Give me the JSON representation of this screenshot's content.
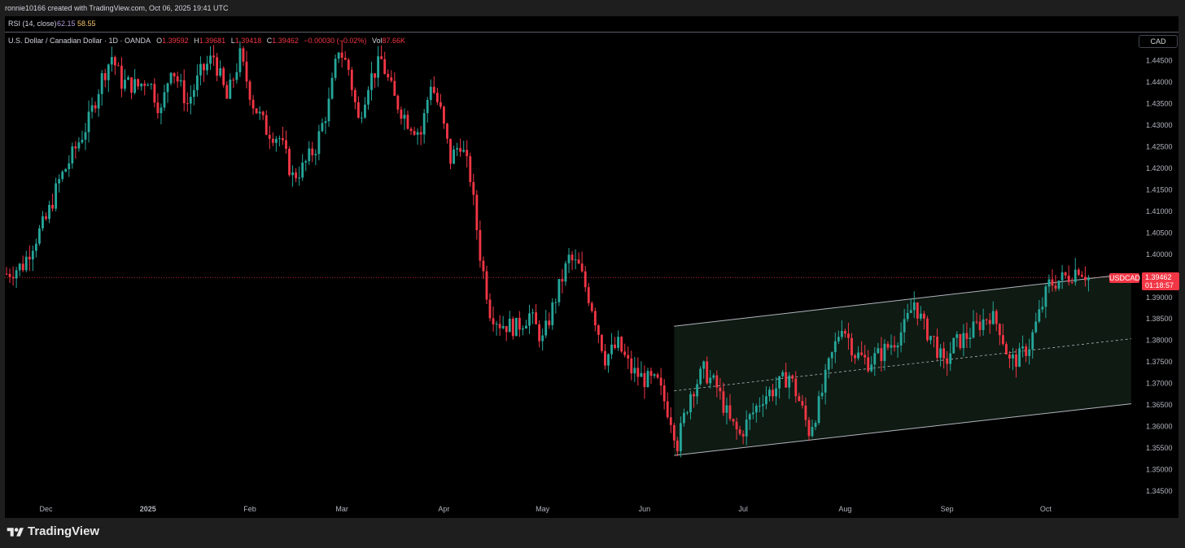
{
  "header": {
    "credit": "ronnie10166 created with TradingView.com, Oct 06, 2025 19:41 UTC"
  },
  "rsi": {
    "label": "RSI (14, close)",
    "value1": "62.15",
    "value2": "58.55",
    "value1_color": "#b39ddb",
    "value2_color": "#f7c76e"
  },
  "legend": {
    "symbol": "U.S. Dollar / Canadian Dollar · 1D · OANDA",
    "o_label": "O",
    "o_value": "1.39592",
    "h_label": "H",
    "h_value": "1.39681",
    "l_label": "L",
    "l_value": "1.39418",
    "c_label": "C",
    "c_value": "1.39462",
    "change": "−0.00030 (−0.02%)",
    "vol_label": "Vol",
    "vol_value": "87.66K"
  },
  "currency_box": "CAD",
  "price_tag": {
    "symbol": "USDCAD",
    "price": "1.39462",
    "countdown": "01:18:57",
    "color": "#f23645"
  },
  "footer": {
    "brand": "TradingView"
  },
  "colors": {
    "up": "#26a69a",
    "down": "#f23645",
    "background": "#000000",
    "axis_text": "#b2b5be"
  },
  "chart_data": {
    "type": "candlestick",
    "title": "",
    "y_axis": {
      "ticks": [
        "1.44500",
        "1.44000",
        "1.43500",
        "1.43000",
        "1.42500",
        "1.42000",
        "1.41500",
        "1.41000",
        "1.40500",
        "1.40000",
        "1.39000",
        "1.38500",
        "1.38000",
        "1.37500",
        "1.37000",
        "1.36500",
        "1.36000",
        "1.35500",
        "1.35000",
        "1.34500"
      ],
      "range": [
        1.342,
        1.4515
      ],
      "side": "right"
    },
    "x_axis": {
      "labels": [
        {
          "text": "Dec",
          "day": 12
        },
        {
          "text": "2025",
          "day": 43,
          "bold": true
        },
        {
          "text": "Feb",
          "day": 74
        },
        {
          "text": "Mar",
          "day": 102
        },
        {
          "text": "Apr",
          "day": 133
        },
        {
          "text": "May",
          "day": 163
        },
        {
          "text": "Jun",
          "day": 194
        },
        {
          "text": "Jul",
          "day": 224
        },
        {
          "text": "Aug",
          "day": 255
        },
        {
          "text": "Sep",
          "day": 286
        },
        {
          "text": "Oct",
          "day": 316
        }
      ],
      "range_days": [
        -0.5,
        343
      ]
    },
    "reference_line": {
      "price": 1.39462,
      "style": "dotted",
      "color": "#f23645"
    },
    "channel": {
      "start_day": 203,
      "end_day": 342,
      "upper": [
        1.3833,
        1.3955
      ],
      "mid": [
        1.3683,
        1.3804
      ],
      "lower": [
        1.3533,
        1.3653
      ],
      "fill": "#0e1a12",
      "line_color": "#b2b5be"
    },
    "anchors": [
      [
        0,
        1.3955
      ],
      [
        5,
        1.3975
      ],
      [
        8,
        1.4025
      ],
      [
        12,
        1.408
      ],
      [
        16,
        1.417
      ],
      [
        20,
        1.423
      ],
      [
        25,
        1.431
      ],
      [
        29,
        1.441
      ],
      [
        32,
        1.446
      ],
      [
        35,
        1.44
      ],
      [
        40,
        1.439
      ],
      [
        43,
        1.441
      ],
      [
        47,
        1.433
      ],
      [
        50,
        1.444
      ],
      [
        55,
        1.435
      ],
      [
        59,
        1.442
      ],
      [
        63,
        1.446
      ],
      [
        67,
        1.436
      ],
      [
        71,
        1.446
      ],
      [
        75,
        1.435
      ],
      [
        79,
        1.429
      ],
      [
        83,
        1.427
      ],
      [
        87,
        1.418
      ],
      [
        90,
        1.42
      ],
      [
        94,
        1.425
      ],
      [
        98,
        1.435
      ],
      [
        101,
        1.448
      ],
      [
        104,
        1.443
      ],
      [
        107,
        1.431
      ],
      [
        110,
        1.44
      ],
      [
        114,
        1.445
      ],
      [
        118,
        1.436
      ],
      [
        122,
        1.431
      ],
      [
        126,
        1.428
      ],
      [
        129,
        1.44
      ],
      [
        132,
        1.433
      ],
      [
        135,
        1.422
      ],
      [
        138,
        1.426
      ],
      [
        141,
        1.418
      ],
      [
        144,
        1.4
      ],
      [
        147,
        1.387
      ],
      [
        150,
        1.384
      ],
      [
        155,
        1.383
      ],
      [
        159,
        1.386
      ],
      [
        163,
        1.38
      ],
      [
        167,
        1.39
      ],
      [
        171,
        1.399
      ],
      [
        174,
        1.397
      ],
      [
        178,
        1.388
      ],
      [
        182,
        1.376
      ],
      [
        186,
        1.379
      ],
      [
        190,
        1.373
      ],
      [
        194,
        1.371
      ],
      [
        198,
        1.37
      ],
      [
        202,
        1.362
      ],
      [
        204,
        1.356
      ],
      [
        208,
        1.368
      ],
      [
        212,
        1.373
      ],
      [
        216,
        1.369
      ],
      [
        220,
        1.361
      ],
      [
        223,
        1.358
      ],
      [
        226,
        1.362
      ],
      [
        230,
        1.367
      ],
      [
        234,
        1.369
      ],
      [
        238,
        1.372
      ],
      [
        241,
        1.366
      ],
      [
        244,
        1.359
      ],
      [
        247,
        1.365
      ],
      [
        250,
        1.374
      ],
      [
        254,
        1.384
      ],
      [
        258,
        1.377
      ],
      [
        262,
        1.375
      ],
      [
        266,
        1.377
      ],
      [
        270,
        1.38
      ],
      [
        273,
        1.383
      ],
      [
        276,
        1.389
      ],
      [
        279,
        1.383
      ],
      [
        282,
        1.38
      ],
      [
        285,
        1.374
      ],
      [
        288,
        1.379
      ],
      [
        292,
        1.381
      ],
      [
        296,
        1.384
      ],
      [
        299,
        1.386
      ],
      [
        302,
        1.383
      ],
      [
        305,
        1.375
      ],
      [
        308,
        1.376
      ],
      [
        311,
        1.379
      ],
      [
        314,
        1.386
      ],
      [
        317,
        1.393
      ],
      [
        320,
        1.394
      ],
      [
        323,
        1.395
      ],
      [
        326,
        1.397
      ],
      [
        329,
        1.3946
      ]
    ],
    "note": "Daily USDCAD OHLC candles; series approximated from the screenshot."
  }
}
